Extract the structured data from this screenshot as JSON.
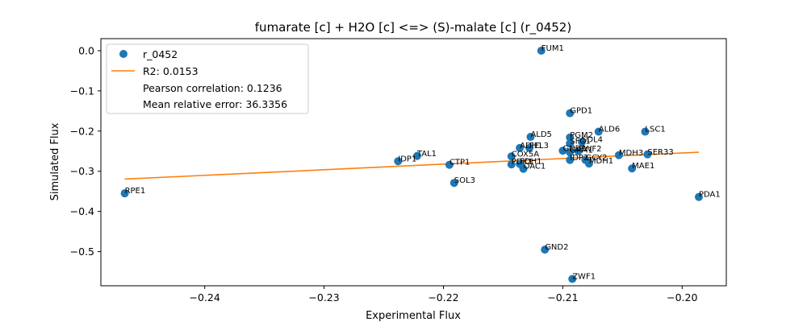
{
  "chart_data": {
    "type": "scatter",
    "title": "fumarate [c] + H2O [c] <=> (S)-malate [c] (r_0452)",
    "xlabel": "Experimental Flux",
    "ylabel": "Simulated Flux",
    "xlim": [
      -0.2487,
      -0.1963
    ],
    "ylim": [
      -0.585,
      0.03
    ],
    "xticks": [
      -0.24,
      -0.23,
      -0.22,
      -0.21,
      -0.2
    ],
    "xtick_labels": [
      "−0.24",
      "−0.23",
      "−0.22",
      "−0.21",
      "−0.20"
    ],
    "yticks": [
      0.0,
      -0.1,
      -0.2,
      -0.3,
      -0.4,
      -0.5
    ],
    "ytick_labels": [
      "0.0",
      "−0.1",
      "−0.2",
      "−0.3",
      "−0.4",
      "−0.5"
    ],
    "legend_position": "upper-left",
    "legend": {
      "series_label": "r_0452",
      "fit_label": "R2: 0.0153",
      "pearson_label": "Pearson correlation: 0.1236",
      "error_label": "Mean relative error: 36.3356"
    },
    "colors": {
      "points": "#1f77b4",
      "fit": "#ff7f0e"
    },
    "fit_line": {
      "x": [
        -0.2467,
        -0.1986
      ],
      "y": [
        -0.3195,
        -0.2525
      ]
    },
    "series": [
      {
        "name": "r_0452",
        "points": [
          {
            "label": "FUM1",
            "x": -0.2118,
            "y": 0.0
          },
          {
            "label": "GPD1",
            "x": -0.2094,
            "y": -0.1555
          },
          {
            "label": "LSC1",
            "x": -0.2031,
            "y": -0.2015
          },
          {
            "label": "ALD6",
            "x": -0.207,
            "y": -0.2015
          },
          {
            "label": "ALD5",
            "x": -0.2127,
            "y": -0.2145
          },
          {
            "label": "PGM2",
            "x": -0.2094,
            "y": -0.216
          },
          {
            "label": "SDL4",
            "x": -0.2084,
            "y": -0.227
          },
          {
            "label": "SFC1",
            "x": -0.2094,
            "y": -0.231
          },
          {
            "label": "ADH1",
            "x": -0.2136,
            "y": -0.242
          },
          {
            "label": "FEL3",
            "x": -0.2128,
            "y": -0.242
          },
          {
            "label": "GND1",
            "x": -0.21,
            "y": -0.249
          },
          {
            "label": "GPM1",
            "x": -0.2094,
            "y": -0.253
          },
          {
            "label": "ZWF2",
            "x": -0.2087,
            "y": -0.25
          },
          {
            "label": "COX5A",
            "x": -0.2143,
            "y": -0.263
          },
          {
            "label": "MDH3",
            "x": -0.2053,
            "y": -0.26
          },
          {
            "label": "SER33",
            "x": -0.2029,
            "y": -0.258
          },
          {
            "label": "IDP2",
            "x": -0.2094,
            "y": -0.272
          },
          {
            "label": "GCY2",
            "x": -0.2081,
            "y": -0.272
          },
          {
            "label": "MDH1",
            "x": -0.2078,
            "y": -0.281
          },
          {
            "label": "PDK1",
            "x": -0.2143,
            "y": -0.283
          },
          {
            "label": "FDH1",
            "x": -0.2136,
            "y": -0.282
          },
          {
            "label": "OAC1",
            "x": -0.2133,
            "y": -0.294
          },
          {
            "label": "MAE1",
            "x": -0.2042,
            "y": -0.293
          },
          {
            "label": "IDP1",
            "x": -0.2238,
            "y": -0.275
          },
          {
            "label": "TAL1",
            "x": -0.2222,
            "y": -0.262
          },
          {
            "label": "CTP1",
            "x": -0.2195,
            "y": -0.284
          },
          {
            "label": "SOL3",
            "x": -0.2191,
            "y": -0.329
          },
          {
            "label": "RPE1",
            "x": -0.2467,
            "y": -0.355
          },
          {
            "label": "PDA1",
            "x": -0.1986,
            "y": -0.364
          },
          {
            "label": "GND2",
            "x": -0.2115,
            "y": -0.495
          },
          {
            "label": "ZWF1",
            "x": -0.2092,
            "y": -0.568
          }
        ]
      }
    ]
  }
}
